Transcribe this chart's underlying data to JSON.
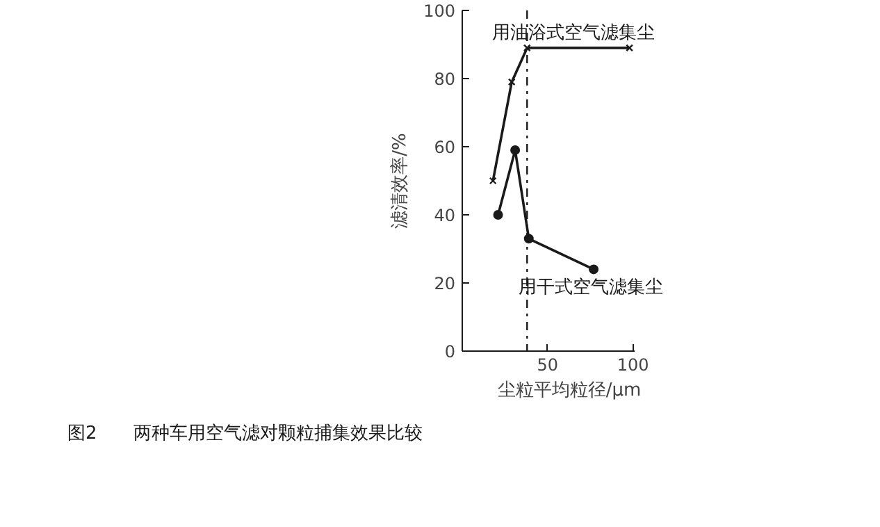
{
  "chart_data": {
    "type": "line",
    "title": "图2　　两种车用空气滤对颗粒捕集效果比较",
    "xlabel": "尘粒平均粒径/μm",
    "ylabel": "滤清效率/%",
    "x": [
      18,
      29,
      38,
      98
    ],
    "series": [
      {
        "name": "用油浴式空气滤集尘",
        "color": "#1a1a1a",
        "marker": "cross",
        "values": [
          50,
          79,
          89,
          89
        ]
      },
      {
        "name": "用干式空气滤集尘",
        "color": "#1a1a1a",
        "marker": "circle",
        "x": [
          21,
          31,
          39,
          77
        ],
        "values": [
          40,
          59,
          33,
          24
        ]
      }
    ],
    "ref_lines": [
      {
        "axis": "x",
        "value": 38,
        "line_style": "dashed",
        "color": "#1a1a1a"
      }
    ],
    "xlim": [
      0,
      101
    ],
    "ylim": [
      0,
      100
    ],
    "xticks": [
      50,
      100
    ],
    "yticks": [
      0,
      20,
      40,
      60,
      80,
      100
    ],
    "grid": false
  }
}
